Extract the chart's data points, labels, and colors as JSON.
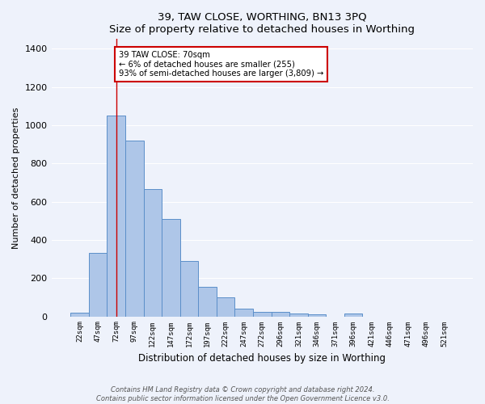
{
  "title": "39, TAW CLOSE, WORTHING, BN13 3PQ",
  "subtitle": "Size of property relative to detached houses in Worthing",
  "xlabel": "Distribution of detached houses by size in Worthing",
  "ylabel": "Number of detached properties",
  "categories": [
    "22sqm",
    "47sqm",
    "72sqm",
    "97sqm",
    "122sqm",
    "147sqm",
    "172sqm",
    "197sqm",
    "222sqm",
    "247sqm",
    "272sqm",
    "296sqm",
    "321sqm",
    "346sqm",
    "371sqm",
    "396sqm",
    "421sqm",
    "446sqm",
    "471sqm",
    "496sqm",
    "521sqm"
  ],
  "values": [
    20,
    333,
    1050,
    920,
    665,
    510,
    288,
    155,
    100,
    42,
    23,
    22,
    15,
    10,
    0,
    13,
    0,
    0,
    0,
    0,
    0
  ],
  "bar_color": "#aec6e8",
  "bar_edge_color": "#5b8fc9",
  "vline_x": 2,
  "vline_color": "#cc0000",
  "annotation_text": "39 TAW CLOSE: 70sqm\n← 6% of detached houses are smaller (255)\n93% of semi-detached houses are larger (3,809) →",
  "annotation_box_color": "#ffffff",
  "annotation_box_edge_color": "#cc0000",
  "ylim": [
    0,
    1450
  ],
  "yticks": [
    0,
    200,
    400,
    600,
    800,
    1000,
    1200,
    1400
  ],
  "background_color": "#eef2fb",
  "grid_color": "#ffffff",
  "footer": "Contains HM Land Registry data © Crown copyright and database right 2024.\nContains public sector information licensed under the Open Government Licence v3.0."
}
